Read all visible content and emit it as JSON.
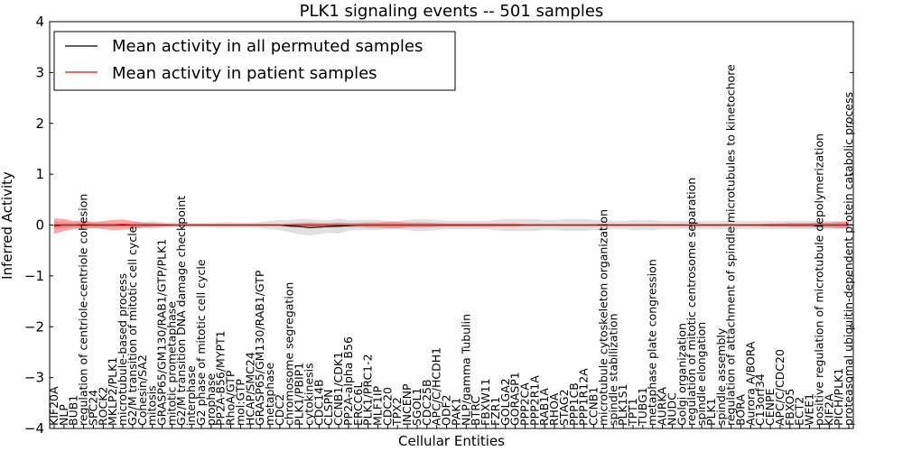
{
  "chart_data": {
    "type": "line",
    "title": "PLK1 signaling events -- 501 samples",
    "xlabel": "Cellular Entities",
    "ylabel": "Inferred Activity",
    "ylim": [
      -4,
      4
    ],
    "yticks": [
      "4",
      "3",
      "2",
      "1",
      "0",
      "−1",
      "−2",
      "−3",
      "−4"
    ],
    "legend_position": "top-left",
    "categories": [
      "KIF20A",
      "NLP",
      "BUB1",
      "regulation of centriole-centriole cohesion",
      "SPC24",
      "ROCK2",
      "MKLP2/PLK1",
      "microtubule-based process",
      "G2/M transition of mitotic cell cycle",
      "Cohesin/SA2",
      "mitosis",
      "GRASP65/GM130/RAB1/GTP/PLK1",
      "mitotic prometaphase",
      "G2/M transition DNA damage checkpoint",
      "interphase",
      "G2 phase of mitotic cell cycle",
      "prophase",
      "PP2A-B56/MYPT1",
      "RhoA/GTP",
      "mol:GTP",
      "HCAP/SMC24",
      "GRASP65/GM130/RAB1/GTP",
      "metaphase",
      "CDC2",
      "chromosome segregation",
      "PLK1/PBIP1",
      "cytokinesis",
      "CDC14B",
      "CLSPN",
      "CCNB1/CDK1",
      "PP2A-alpha B56",
      "ERCC6L",
      "PLK1/PRC1-2",
      "MLF1IP",
      "CDC20",
      "TPX2",
      "INCENP",
      "SGOL1",
      "CDC25B",
      "APC/C/HCDH1",
      "ODF2",
      "PAK1",
      "NLP/gamma Tubulin",
      "BTRC",
      "FBXW11",
      "FZR1",
      "GOLGA2",
      "GORASP1",
      "PPP2CA",
      "PPP2R1A",
      "RAB1A",
      "RHOA",
      "STAG2",
      "PPP1CB",
      "PPP1R12A",
      "CCNB1",
      "microtubule cytoskeleton organization",
      "spindle stabilization",
      "PLK1S1",
      "TPT1",
      "TUBG1",
      "metaphase plate congression",
      "AURKA",
      "NUDC",
      "Golgi organization",
      "regulation of mitotic centrosome separation",
      "spindle elongation",
      "PLK1",
      "spindle assembly",
      "regulation of attachment of spindle microtubules to kinetochore",
      "BORA",
      "Aurora A/BORA",
      "C13orf34",
      "CENPE",
      "APC/C/CDC20",
      "FBXO5",
      "ECT2",
      "WEE1",
      "positive regulation of microtubule depolymerization",
      "KIF2A",
      "PICH/PLK1",
      "proteasomal ubiquitin-dependent protein catabolic process"
    ],
    "series": [
      {
        "name": "Mean activity in all permuted samples",
        "color": "#000000",
        "values": [
          0,
          0,
          0,
          0,
          0,
          0,
          0,
          0,
          0,
          0,
          0,
          0,
          0,
          0,
          0,
          0,
          0,
          0,
          0,
          0,
          0,
          0,
          0,
          0,
          -0.02,
          -0.03,
          -0.05,
          -0.04,
          -0.03,
          -0.02,
          -0.01,
          0,
          0,
          0,
          0,
          0,
          0,
          0,
          0,
          0,
          0,
          0,
          0,
          0,
          0,
          0,
          0,
          0,
          0,
          0,
          0,
          0,
          0,
          0,
          0,
          0,
          0,
          0,
          0,
          0,
          0,
          0,
          0,
          0,
          0,
          0,
          0,
          0,
          0,
          0,
          0,
          0,
          0,
          0,
          0,
          0,
          0,
          0,
          0,
          0,
          0,
          0
        ],
        "band": [
          0.08,
          0.06,
          0.05,
          0.06,
          0.05,
          0.05,
          0.04,
          0.04,
          0.05,
          0.06,
          0.08,
          0.06,
          0.05,
          0.04,
          0.04,
          0.04,
          0.05,
          0.06,
          0.06,
          0.05,
          0.05,
          0.06,
          0.08,
          0.1,
          0.12,
          0.15,
          0.16,
          0.14,
          0.12,
          0.15,
          0.1,
          0.1,
          0.1,
          0.1,
          0.08,
          0.08,
          0.1,
          0.12,
          0.12,
          0.1,
          0.08,
          0.08,
          0.08,
          0.08,
          0.08,
          0.1,
          0.12,
          0.12,
          0.12,
          0.12,
          0.1,
          0.1,
          0.12,
          0.12,
          0.12,
          0.1,
          0.1,
          0.08,
          0.08,
          0.1,
          0.1,
          0.1,
          0.08,
          0.08,
          0.08,
          0.08,
          0.08,
          0.08,
          0.08,
          0.08,
          0.08,
          0.08,
          0.08,
          0.08,
          0.08,
          0.08,
          0.08,
          0.08,
          0.08,
          0.08,
          0.08,
          0.08
        ]
      },
      {
        "name": "Mean activity in patient samples",
        "color": "#ff0000",
        "values": [
          -0.02,
          0,
          0,
          0.01,
          0,
          0,
          0,
          0.01,
          0,
          0,
          0,
          0,
          0,
          0,
          0,
          0,
          0,
          0,
          0,
          0,
          0,
          0,
          0,
          0,
          0,
          0,
          0,
          0,
          0,
          0,
          0,
          0,
          0,
          0,
          0,
          0,
          0,
          0,
          0,
          0,
          0,
          0,
          0,
          0,
          0,
          0,
          0,
          0,
          0,
          0,
          0,
          0,
          0,
          0,
          0,
          0,
          0,
          0,
          0,
          0,
          0,
          0,
          0,
          0,
          0,
          0,
          0,
          0,
          0,
          0,
          0,
          0,
          0,
          0,
          0,
          0,
          0,
          0,
          0,
          0,
          0,
          0
        ],
        "band": [
          0.15,
          0.12,
          0.08,
          0.08,
          0.06,
          0.08,
          0.1,
          0.1,
          0.08,
          0.05,
          0.04,
          0.03,
          0.02,
          0.02,
          0.02,
          0.02,
          0.02,
          0.02,
          0.02,
          0.02,
          0.02,
          0.02,
          0.02,
          0.02,
          0.03,
          0.04,
          0.05,
          0.04,
          0.04,
          0.05,
          0.04,
          0.04,
          0.05,
          0.05,
          0.06,
          0.06,
          0.05,
          0.05,
          0.05,
          0.04,
          0.03,
          0.03,
          0.03,
          0.03,
          0.03,
          0.03,
          0.03,
          0.03,
          0.02,
          0.02,
          0.02,
          0.02,
          0.02,
          0.02,
          0.02,
          0.02,
          0.02,
          0.02,
          0.02,
          0.02,
          0.02,
          0.02,
          0.02,
          0.02,
          0.02,
          0.02,
          0.02,
          0.02,
          0.02,
          0.02,
          0.02,
          0.02,
          0.02,
          0.03,
          0.03,
          0.04,
          0.04,
          0.04,
          0.05,
          0.05,
          0.06,
          0.06
        ]
      }
    ]
  }
}
